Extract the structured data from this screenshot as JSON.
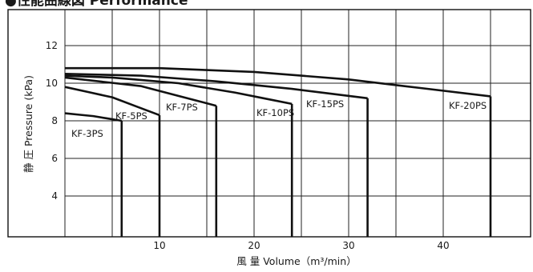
{
  "chart_data": {
    "type": "line",
    "title": "●性能曲線図 Performance",
    "xlabel": "風 量 Volume（m³/min）",
    "ylabel": "静 圧 Pressure (kPa)",
    "xlim": [
      -6,
      50
    ],
    "ylim": [
      2,
      14
    ],
    "x_ticks": [
      10,
      20,
      30,
      40
    ],
    "y_ticks": [
      4,
      6,
      8,
      10,
      12
    ],
    "grid": true,
    "series": [
      {
        "name": "KF-3PS",
        "x": [
          0,
          3,
          6
        ],
        "y": [
          8.4,
          8.25,
          8.0
        ]
      },
      {
        "name": "KF-5PS",
        "x": [
          0,
          5,
          10
        ],
        "y": [
          9.8,
          9.25,
          8.3
        ]
      },
      {
        "name": "KF-7PS",
        "x": [
          0,
          8,
          16
        ],
        "y": [
          10.3,
          9.85,
          8.8
        ]
      },
      {
        "name": "KF-10PS",
        "x": [
          0,
          5,
          12,
          18,
          24
        ],
        "y": [
          10.4,
          10.3,
          10.0,
          9.5,
          8.9
        ]
      },
      {
        "name": "KF-15PS",
        "x": [
          0,
          8,
          16,
          24,
          32
        ],
        "y": [
          10.5,
          10.4,
          10.1,
          9.7,
          9.2
        ]
      },
      {
        "name": "KF-20PS",
        "x": [
          0,
          10,
          20,
          30,
          45
        ],
        "y": [
          10.8,
          10.8,
          10.6,
          10.2,
          9.3
        ]
      }
    ]
  }
}
